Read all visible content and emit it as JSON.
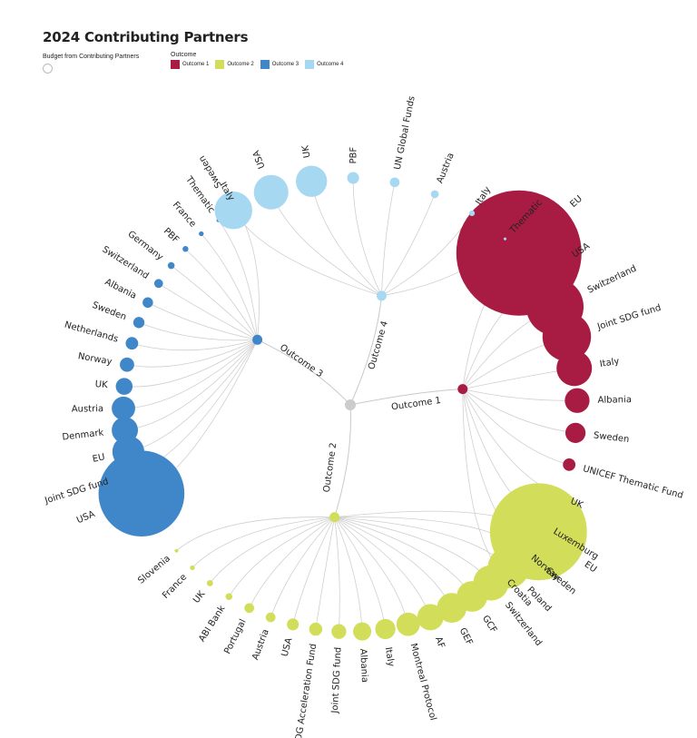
{
  "title": "2024 Contributing Partners",
  "size_legend_label": "Budget from Contributing Partners",
  "color_legend": {
    "title": "Outcome",
    "items": [
      {
        "label": "Outcome 1",
        "color": "#a81c44"
      },
      {
        "label": "Outcome 2",
        "color": "#d2de5a"
      },
      {
        "label": "Outcome 3",
        "color": "#3f87c9"
      },
      {
        "label": "Outcome 4",
        "color": "#a6d8f2"
      }
    ]
  },
  "chart_data": {
    "type": "radial-tree",
    "root": {
      "color": "#cccccc"
    },
    "outcomes": [
      {
        "name": "Outcome 1",
        "color": "#a81c44",
        "partners": [
          {
            "name": "EU",
            "value": 100
          },
          {
            "name": "USA",
            "value": 28
          },
          {
            "name": "Switzerland",
            "value": 21
          },
          {
            "name": "Joint SDG fund",
            "value": 15
          },
          {
            "name": "Italy",
            "value": 8
          },
          {
            "name": "Albania",
            "value": 3.9
          },
          {
            "name": "Sweden",
            "value": 2.6
          },
          {
            "name": "UNICEF Thematic Fund",
            "value": 1
          },
          {
            "name": "UK",
            "value": 0.8
          },
          {
            "name": "Luxemburg",
            "value": 0.5
          },
          {
            "name": "Norway",
            "value": 0.1
          },
          {
            "name": "Croatia",
            "value": 0.05
          }
        ]
      },
      {
        "name": "Outcome 2",
        "color": "#d2de5a",
        "partners": [
          {
            "name": "EU",
            "value": 60
          },
          {
            "name": "Sweden",
            "value": 12
          },
          {
            "name": "Poland",
            "value": 11
          },
          {
            "name": "Switzerland",
            "value": 8
          },
          {
            "name": "GCF",
            "value": 6
          },
          {
            "name": "GEF",
            "value": 5.6
          },
          {
            "name": "AF",
            "value": 4.4
          },
          {
            "name": "Montreal Protocol",
            "value": 3.5
          },
          {
            "name": "Italy",
            "value": 2.6
          },
          {
            "name": "Albania",
            "value": 2.1
          },
          {
            "name": "Joint SDG fund",
            "value": 1.4
          },
          {
            "name": "SDG Acceleration Fund",
            "value": 1.1
          },
          {
            "name": "USA",
            "value": 0.9
          },
          {
            "name": "Austria",
            "value": 0.6
          },
          {
            "name": "Portugal",
            "value": 0.6
          },
          {
            "name": "ABI Bank",
            "value": 0.3
          },
          {
            "name": "UK",
            "value": 0.25
          },
          {
            "name": "France",
            "value": 0.15
          },
          {
            "name": "Slovenia",
            "value": 0.08
          }
        ]
      },
      {
        "name": "Outcome 3",
        "color": "#3f87c9",
        "partners": [
          {
            "name": "USA",
            "value": 47
          },
          {
            "name": "Joint SDG fund",
            "value": 9
          },
          {
            "name": "EU",
            "value": 6.5
          },
          {
            "name": "Denmark",
            "value": 4.4
          },
          {
            "name": "Austria",
            "value": 3.5
          },
          {
            "name": "UK",
            "value": 1.8
          },
          {
            "name": "Norway",
            "value": 1.3
          },
          {
            "name": "Netherlands",
            "value": 1
          },
          {
            "name": "Sweden",
            "value": 0.8
          },
          {
            "name": "Albania",
            "value": 0.7
          },
          {
            "name": "Switzerland",
            "value": 0.5
          },
          {
            "name": "Germany",
            "value": 0.3
          },
          {
            "name": "PBF",
            "value": 0.22
          },
          {
            "name": "France",
            "value": 0.15
          },
          {
            "name": "Thematic",
            "value": 0.1
          },
          {
            "name": "Italy",
            "value": 0.06
          }
        ]
      },
      {
        "name": "Outcome 4",
        "color": "#a6d8f2",
        "partners": [
          {
            "name": "Sweden",
            "value": 9
          },
          {
            "name": "USA",
            "value": 7.6
          },
          {
            "name": "UK",
            "value": 6.2
          },
          {
            "name": "PBF",
            "value": 0.9
          },
          {
            "name": "UN Global Funds",
            "value": 0.6
          },
          {
            "name": "Austria",
            "value": 0.4
          },
          {
            "name": "Italy",
            "value": 0.2
          },
          {
            "name": "Thematic",
            "value": 0.05
          }
        ]
      }
    ]
  }
}
